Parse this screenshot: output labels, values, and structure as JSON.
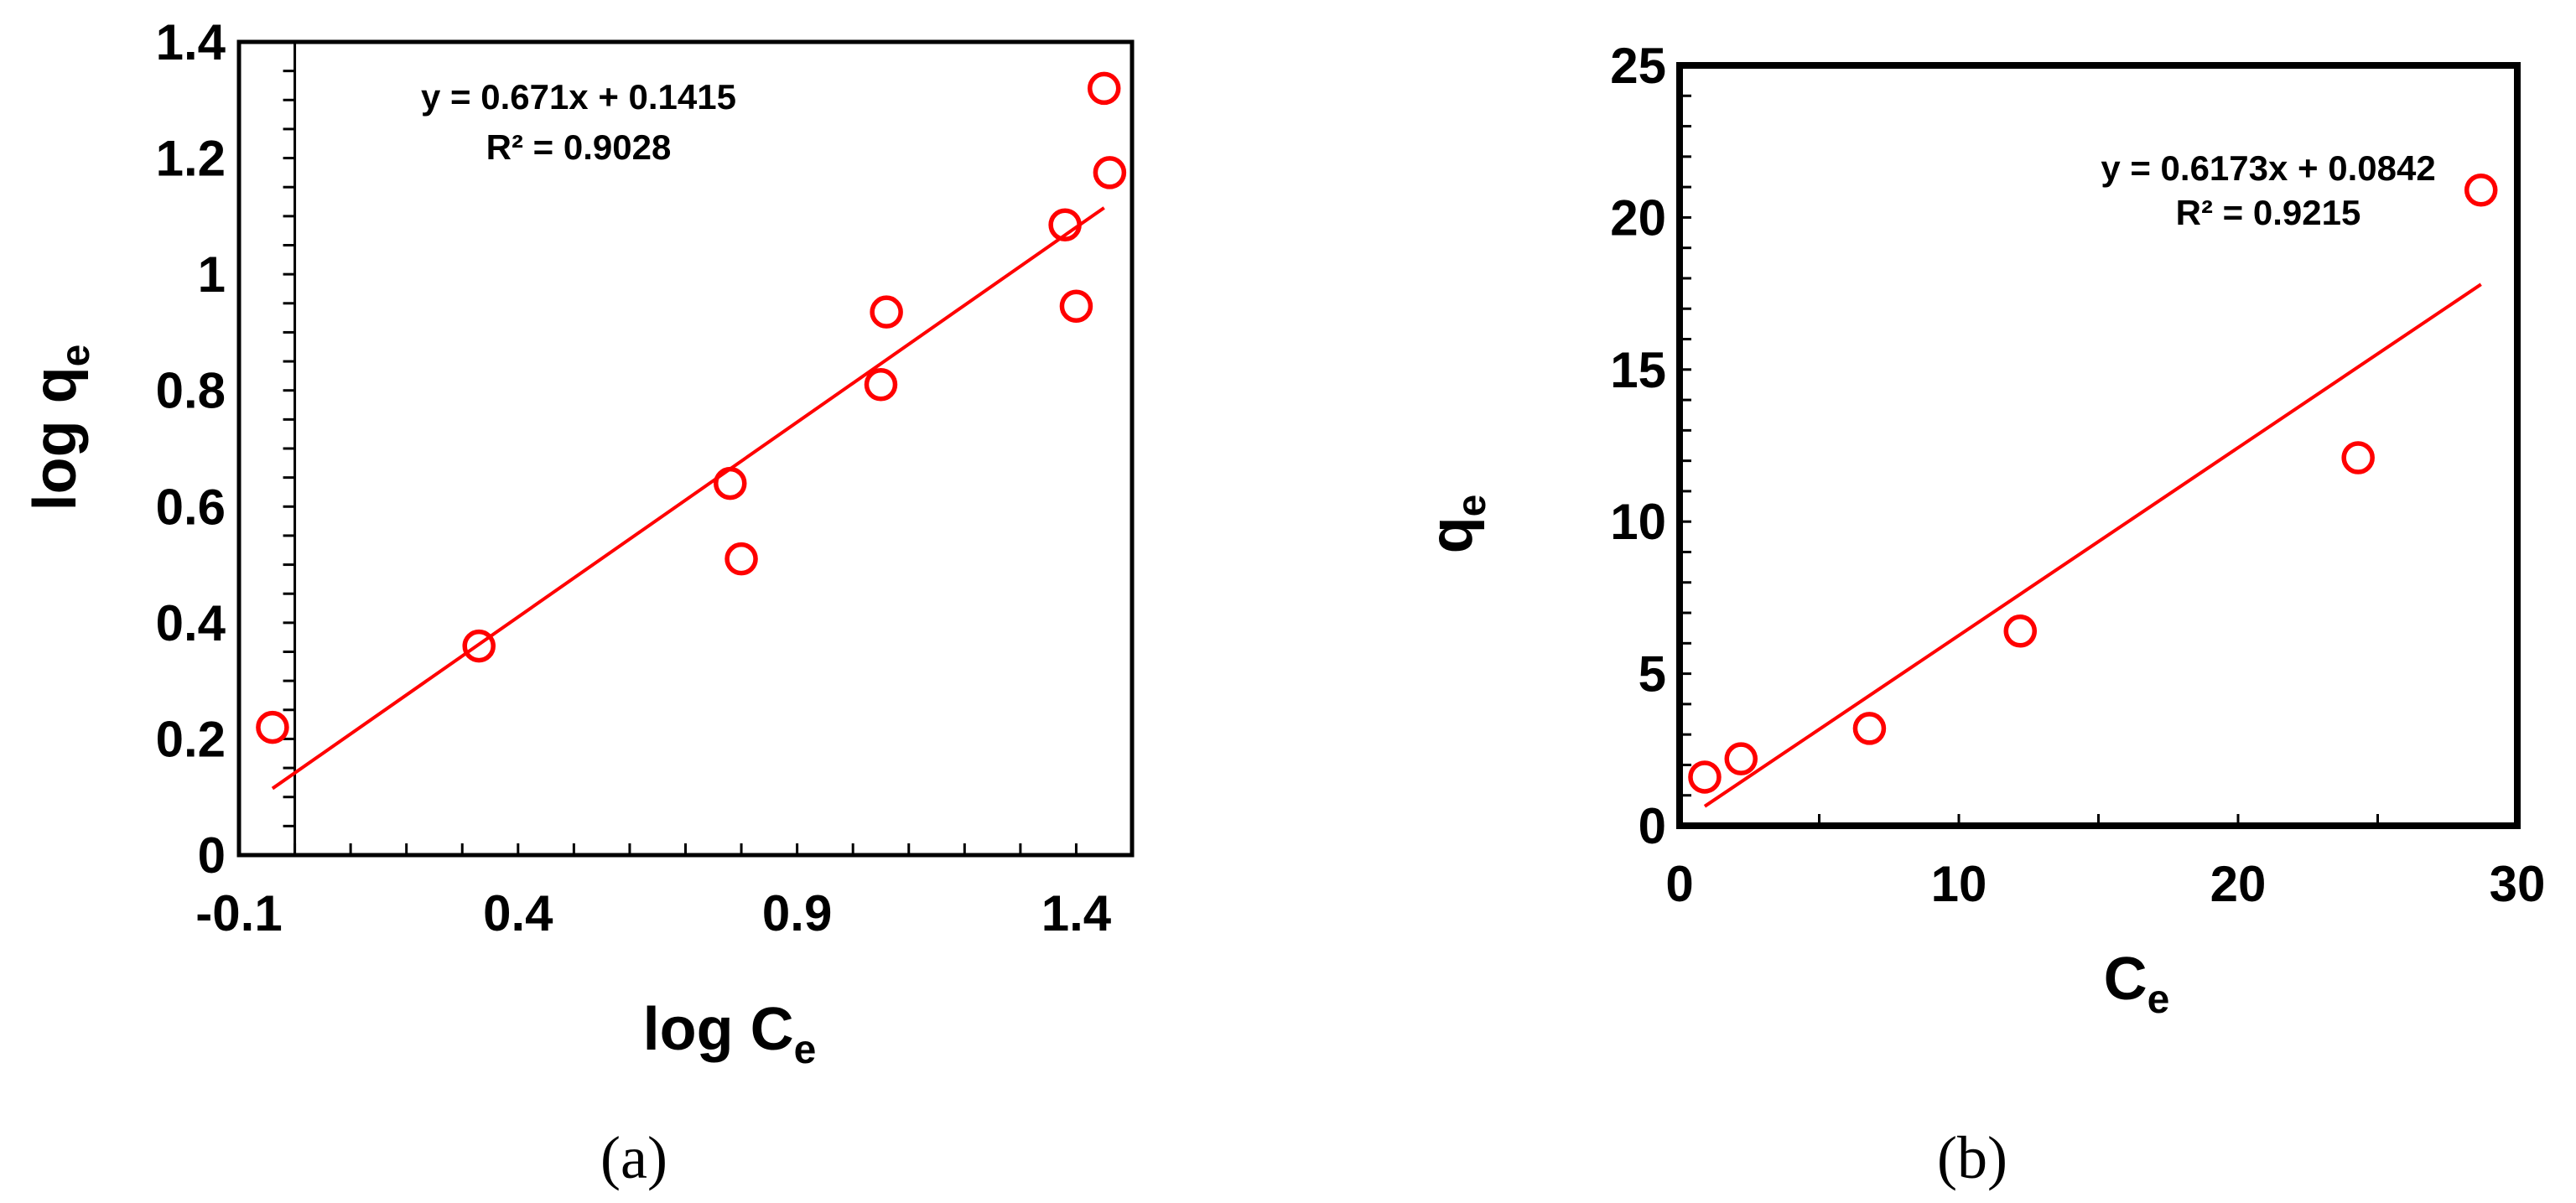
{
  "chart_data": [
    {
      "type": "scatter",
      "xlabel": "log C",
      "xlabel_sub": "e",
      "ylabel": "log q",
      "ylabel_sub": "e",
      "xlim": [
        -0.1,
        1.5
      ],
      "ylim": [
        0,
        1.4
      ],
      "xticks": [
        -0.1,
        0.4,
        0.9,
        1.4
      ],
      "xtick_labels": [
        "-0.1",
        "0.4",
        "0.9",
        "1.4"
      ],
      "yticks": [
        0,
        0.2,
        0.4,
        0.6,
        0.8,
        1,
        1.2,
        1.4
      ],
      "ytick_labels": [
        "0",
        "0.2",
        "0.4",
        "0.6",
        "0.8",
        "1",
        "1.2",
        "1.4"
      ],
      "series": [
        {
          "points": [
            {
              "x": -0.04,
              "y": 0.22
            },
            {
              "x": 0.33,
              "y": 0.36
            },
            {
              "x": 0.78,
              "y": 0.64
            },
            {
              "x": 0.8,
              "y": 0.51
            },
            {
              "x": 1.05,
              "y": 0.81
            },
            {
              "x": 1.06,
              "y": 0.935
            },
            {
              "x": 1.38,
              "y": 1.085
            },
            {
              "x": 1.4,
              "y": 0.945
            },
            {
              "x": 1.45,
              "y": 1.32
            },
            {
              "x": 1.46,
              "y": 1.175
            }
          ],
          "color": "#ff0000"
        }
      ],
      "trendline": {
        "slope": 0.671,
        "intercept": 0.1415,
        "x_from": -0.04,
        "x_to": 1.45,
        "color": "#ff0000"
      },
      "equation": "y = 0.671x + 0.1415",
      "r_squared": "R² = 0.9028",
      "vertical_ref_line_x": 0,
      "panel_label": "(a)"
    },
    {
      "type": "scatter",
      "xlabel": "C",
      "xlabel_sub": "e",
      "ylabel": "q",
      "ylabel_sub": "e",
      "xlim": [
        0,
        30
      ],
      "ylim": [
        0,
        25
      ],
      "xticks": [
        0,
        10,
        20,
        30
      ],
      "xtick_labels": [
        "0",
        "10",
        "20",
        "30"
      ],
      "yticks": [
        0,
        5,
        10,
        15,
        20,
        25
      ],
      "ytick_labels": [
        "0",
        "5",
        "10",
        "15",
        "20",
        "25"
      ],
      "series": [
        {
          "points": [
            {
              "x": 0.9,
              "y": 1.6
            },
            {
              "x": 2.2,
              "y": 2.2
            },
            {
              "x": 6.8,
              "y": 3.2
            },
            {
              "x": 12.2,
              "y": 6.4
            },
            {
              "x": 24.3,
              "y": 12.1
            },
            {
              "x": 28.7,
              "y": 20.9
            }
          ],
          "color": "#ff0000"
        }
      ],
      "trendline": {
        "slope": 0.6173,
        "intercept": 0.0842,
        "x_from": 0.9,
        "x_to": 28.7,
        "color": "#ff0000"
      },
      "equation": "y = 0.6173x + 0.0842",
      "r_squared": "R² = 0.9215",
      "panel_label": "(b)"
    }
  ]
}
